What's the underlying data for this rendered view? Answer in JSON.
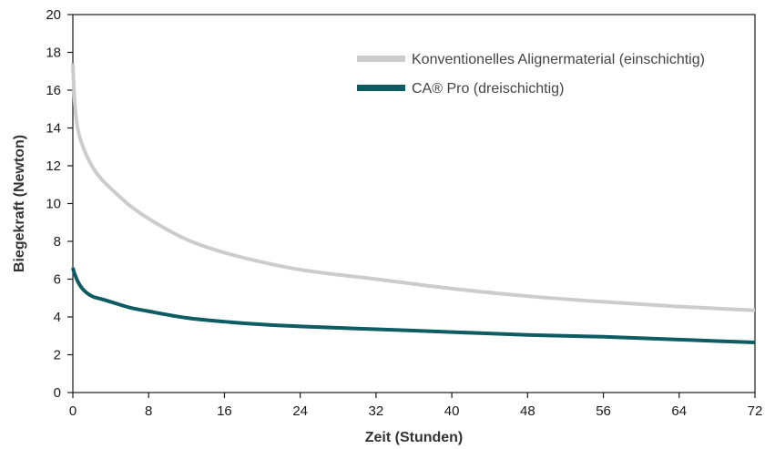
{
  "chart_data": {
    "type": "line",
    "title": "",
    "xlabel": "Zeit (Stunden)",
    "ylabel": "Biegekraft (Newton)",
    "xlim": [
      0,
      72
    ],
    "ylim": [
      0,
      20
    ],
    "xticks": [
      0,
      8,
      16,
      24,
      32,
      40,
      48,
      56,
      64,
      72
    ],
    "yticks": [
      0,
      2,
      4,
      6,
      8,
      10,
      12,
      14,
      16,
      18,
      20
    ],
    "grid": false,
    "legend_position": "top-right",
    "series": [
      {
        "name": "Konventionelles Alignermaterial (einschichtig)",
        "color": "#cccccc",
        "x": [
          0,
          0.1,
          0.25,
          0.5,
          1,
          2,
          3,
          4,
          6,
          8,
          12,
          16,
          20,
          24,
          32,
          40,
          48,
          56,
          64,
          72
        ],
        "y": [
          17.4,
          16.2,
          15.0,
          14.0,
          13.1,
          12.0,
          11.3,
          10.8,
          9.9,
          9.2,
          8.1,
          7.4,
          6.9,
          6.5,
          6.0,
          5.5,
          5.1,
          4.8,
          4.55,
          4.35
        ]
      },
      {
        "name": "CA® Pro (dreischichtig)",
        "color": "#0d5c63",
        "x": [
          0,
          0.1,
          0.25,
          0.5,
          1,
          2,
          3,
          4,
          6,
          8,
          12,
          16,
          20,
          24,
          32,
          40,
          48,
          56,
          64,
          72
        ],
        "y": [
          6.6,
          6.4,
          6.2,
          5.9,
          5.5,
          5.1,
          4.95,
          4.8,
          4.5,
          4.3,
          3.95,
          3.75,
          3.6,
          3.5,
          3.35,
          3.2,
          3.05,
          2.95,
          2.8,
          2.65
        ]
      }
    ]
  }
}
